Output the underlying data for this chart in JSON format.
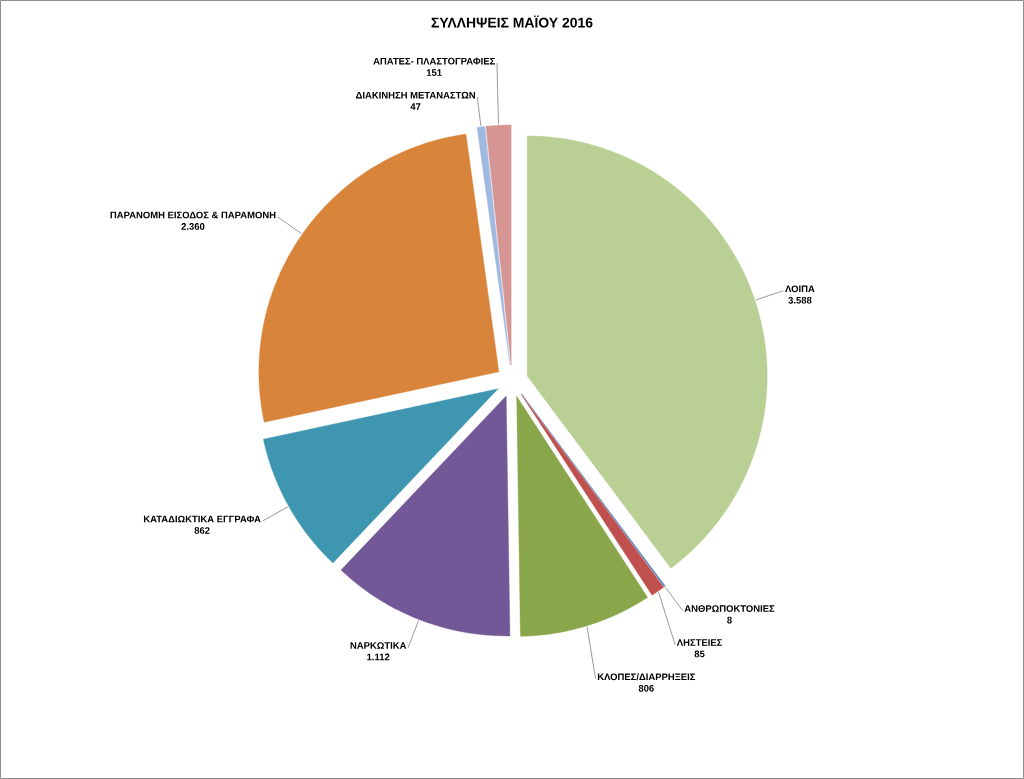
{
  "chart_data": {
    "type": "pie",
    "title": "ΣΥΛΛΗΨΕΙΣ ΜΑΪΟΥ 2016",
    "categories": [
      "ΛΟΙΠΑ",
      "ΑΝΘΡΩΠΟΚΤΟΝΙΕΣ",
      "ΛΗΣΤΕΙΕΣ",
      "ΚΛΟΠΕΣ/ΔΙΑΡΡΗΞΕΙΣ",
      "ΝΑΡΚΩΤΙΚΑ",
      "ΚΑΤΑΔΙΩΚΤΙΚΑ ΕΓΓΡΑΦΑ",
      "ΠΑΡΑΝΟΜΗ ΕΙΣΟΔΟΣ & ΠΑΡΑΜΟΝΗ",
      "ΔΙΑΚΙΝΗΣΗ ΜΕΤΑΝΑΣΤΩΝ",
      "ΑΠΑΤΕΣ- ΠΛΑΣΤΟΓΡΑΦΙΕΣ"
    ],
    "values": [
      3588,
      8,
      85,
      806,
      1112,
      862,
      2360,
      47,
      151
    ],
    "value_labels": [
      "3.588",
      "8",
      "85",
      "806",
      "1.112",
      "862",
      "2.360",
      "47",
      "151"
    ],
    "colors": [
      "#b9cf94",
      "#4f81bd",
      "#c0504d",
      "#89a64a",
      "#735897",
      "#3f96b0",
      "#d8843b",
      "#a0b9e1",
      "#d59593"
    ]
  }
}
